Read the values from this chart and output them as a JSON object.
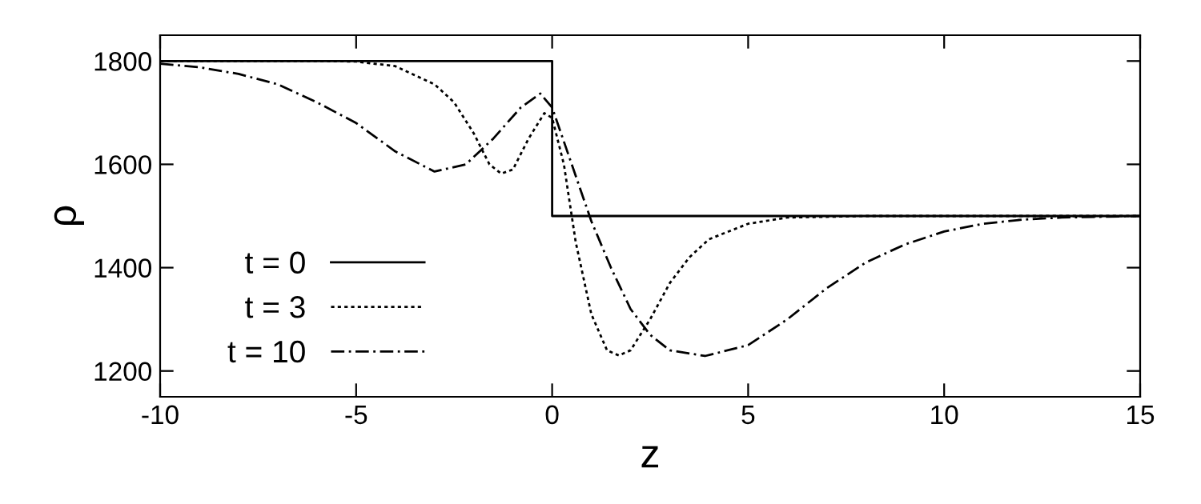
{
  "chart_data": {
    "type": "line",
    "xlabel": "z",
    "ylabel": "ρ",
    "xlim": [
      -10,
      15
    ],
    "xticks": [
      -10,
      -5,
      0,
      5,
      10,
      15
    ],
    "ylim": [
      1150,
      1850
    ],
    "yticks": [
      1200,
      1400,
      1600,
      1800
    ],
    "grid": false,
    "legend": "bottom left",
    "series": [
      {
        "name": "t = 0",
        "color": "#000000",
        "line_style": "solid",
        "x": [
          -10,
          0,
          0,
          15
        ],
        "values": [
          1800,
          1800,
          1500,
          1500
        ]
      },
      {
        "name": "t = 3",
        "color": "#000000",
        "line_style": "dotted",
        "x": [
          -10,
          -6,
          -5,
          -4,
          -3,
          -2.5,
          -2,
          -1.6,
          -1.3,
          -1,
          -0.6,
          -0.2,
          0,
          0.3,
          0.6,
          1,
          1.4,
          1.7,
          2,
          2.5,
          3,
          3.5,
          4,
          5,
          6,
          8,
          15
        ],
        "values": [
          1800,
          1800,
          1799,
          1790,
          1755,
          1720,
          1660,
          1600,
          1582,
          1590,
          1650,
          1699,
          1690,
          1600,
          1450,
          1310,
          1240,
          1230,
          1240,
          1300,
          1370,
          1420,
          1455,
          1485,
          1497,
          1500,
          1500
        ]
      },
      {
        "name": "t = 10",
        "color": "#000000",
        "line_style": "dashdot",
        "x": [
          -10,
          -9,
          -8,
          -7,
          -6,
          -5,
          -4,
          -3,
          -2.2,
          -1.5,
          -0.8,
          -0.3,
          0,
          0.5,
          1,
          1.5,
          2,
          2.5,
          3,
          3.9,
          5,
          6,
          7,
          8,
          9,
          10,
          11,
          12,
          13,
          15
        ],
        "values": [
          1795,
          1788,
          1775,
          1755,
          1720,
          1680,
          1625,
          1586,
          1600,
          1650,
          1710,
          1737,
          1710,
          1600,
          1490,
          1400,
          1320,
          1270,
          1240,
          1229,
          1250,
          1300,
          1360,
          1410,
          1445,
          1470,
          1485,
          1493,
          1497,
          1500
        ]
      }
    ]
  }
}
